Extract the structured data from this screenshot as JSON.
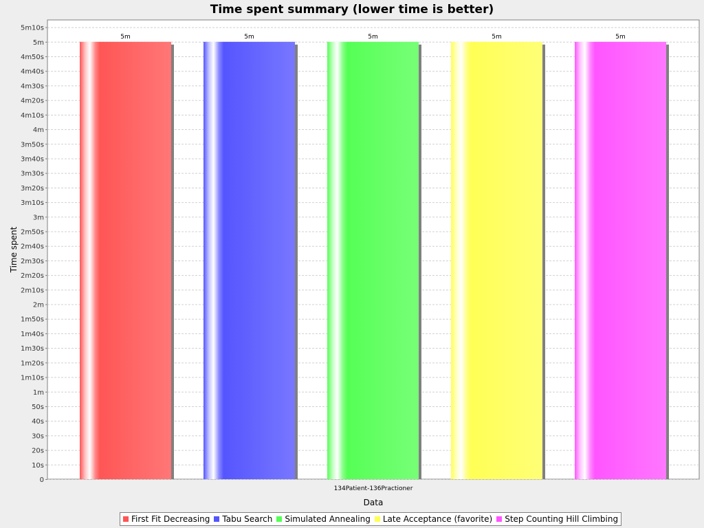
{
  "chart_data": {
    "type": "bar",
    "title": "Time spent summary (lower time is better)",
    "xlabel": "Data",
    "ylabel": "Time spent",
    "categories": [
      "134Patient-136Practioner"
    ],
    "ylim": [
      0,
      315
    ],
    "y_ticks": [
      {
        "value": 0,
        "label": "0"
      },
      {
        "value": 10,
        "label": "10s"
      },
      {
        "value": 20,
        "label": "20s"
      },
      {
        "value": 30,
        "label": "30s"
      },
      {
        "value": 40,
        "label": "40s"
      },
      {
        "value": 50,
        "label": "50s"
      },
      {
        "value": 60,
        "label": "1m"
      },
      {
        "value": 70,
        "label": "1m10s"
      },
      {
        "value": 80,
        "label": "1m20s"
      },
      {
        "value": 90,
        "label": "1m30s"
      },
      {
        "value": 100,
        "label": "1m40s"
      },
      {
        "value": 110,
        "label": "1m50s"
      },
      {
        "value": 120,
        "label": "2m"
      },
      {
        "value": 130,
        "label": "2m10s"
      },
      {
        "value": 140,
        "label": "2m20s"
      },
      {
        "value": 150,
        "label": "2m30s"
      },
      {
        "value": 160,
        "label": "2m40s"
      },
      {
        "value": 170,
        "label": "2m50s"
      },
      {
        "value": 180,
        "label": "3m"
      },
      {
        "value": 190,
        "label": "3m10s"
      },
      {
        "value": 200,
        "label": "3m20s"
      },
      {
        "value": 210,
        "label": "3m30s"
      },
      {
        "value": 220,
        "label": "3m40s"
      },
      {
        "value": 230,
        "label": "3m50s"
      },
      {
        "value": 240,
        "label": "4m"
      },
      {
        "value": 250,
        "label": "4m10s"
      },
      {
        "value": 260,
        "label": "4m20s"
      },
      {
        "value": 270,
        "label": "4m30s"
      },
      {
        "value": 280,
        "label": "4m40s"
      },
      {
        "value": 290,
        "label": "4m50s"
      },
      {
        "value": 300,
        "label": "5m"
      },
      {
        "value": 310,
        "label": "5m10s"
      }
    ],
    "grid": true,
    "legend_position": "bottom",
    "series": [
      {
        "name": "First Fit Decreasing",
        "values": [
          300
        ],
        "value_labels": [
          "5m"
        ],
        "color": "#ff5555"
      },
      {
        "name": "Tabu Search",
        "values": [
          300
        ],
        "value_labels": [
          "5m"
        ],
        "color": "#5555ff"
      },
      {
        "name": "Simulated Annealing",
        "values": [
          300
        ],
        "value_labels": [
          "5m"
        ],
        "color": "#55ff55"
      },
      {
        "name": "Late Acceptance (favorite)",
        "values": [
          300
        ],
        "value_labels": [
          "5m"
        ],
        "color": "#ffff55"
      },
      {
        "name": "Step Counting Hill Climbing",
        "values": [
          300
        ],
        "value_labels": [
          "5m"
        ],
        "color": "#ff55ff"
      }
    ]
  }
}
